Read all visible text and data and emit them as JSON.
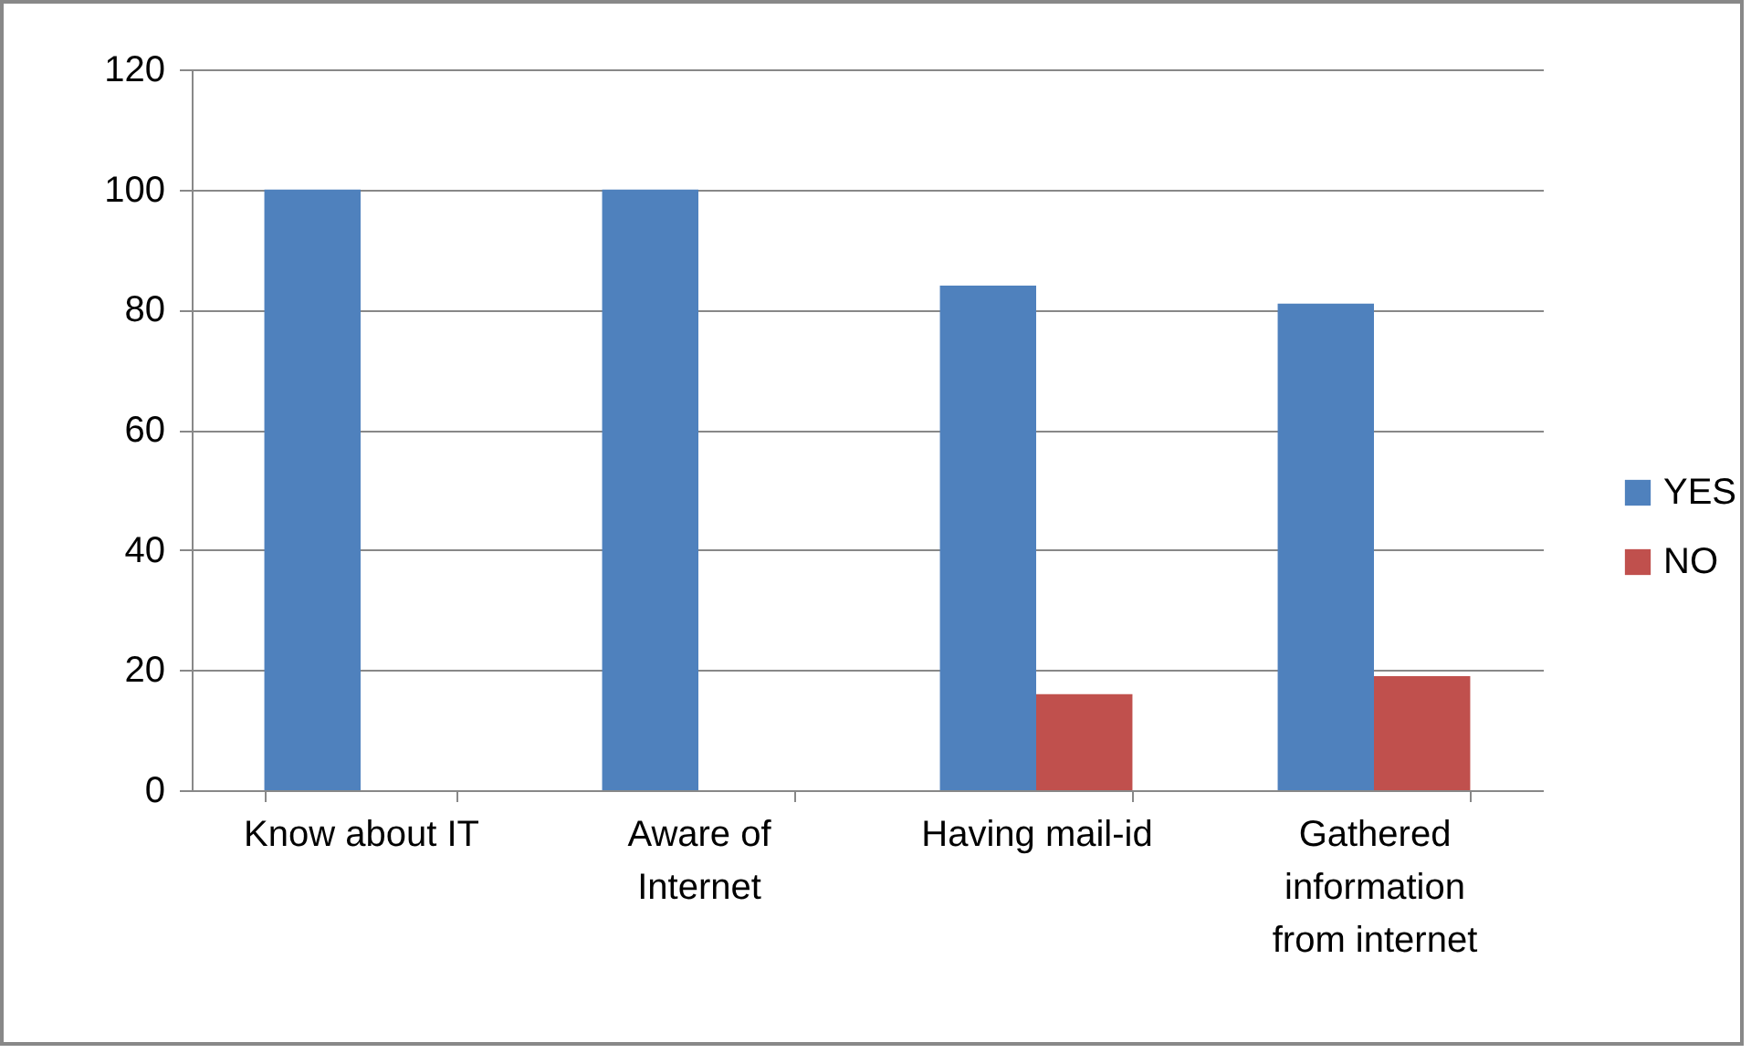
{
  "chart_data": {
    "type": "bar",
    "categories": [
      "Know about IT",
      "Aware of Internet",
      "Having mail-id",
      "Gathered information from internet"
    ],
    "series": [
      {
        "name": "YES",
        "color": "#4f81bd",
        "values": [
          100,
          100,
          84,
          81
        ]
      },
      {
        "name": "NO",
        "color": "#c0504d",
        "values": [
          0,
          0,
          16,
          19
        ]
      }
    ],
    "ylim": [
      0,
      120
    ],
    "yticks": [
      0,
      20,
      40,
      60,
      80,
      100,
      120
    ],
    "grid": "y",
    "legend": "right"
  }
}
